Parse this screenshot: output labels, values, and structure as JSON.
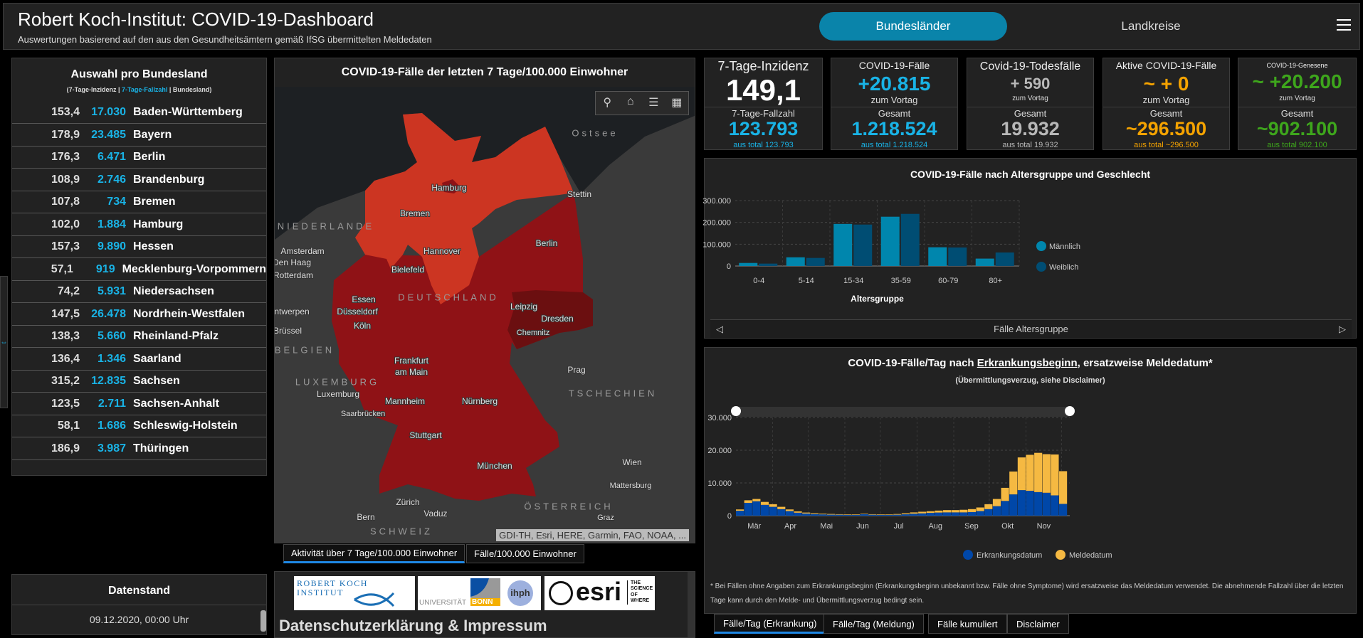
{
  "header": {
    "title": "Robert Koch-Institut: COVID-19-Dashboard",
    "subtitle": "Auswertungen basierend auf den aus den Gesundheitsämtern gemäß IfSG übermittelten Meldedaten",
    "tabs": [
      "Bundesländer",
      "Landkreise"
    ],
    "active_tab": "Bundesländer"
  },
  "states_panel": {
    "title": "Auswahl pro Bundesland",
    "legend_a": "(7-Tage-Inzidenz | ",
    "legend_b": "7-Tage-Fallzahl",
    "legend_c": " | Bundesland)",
    "rows": [
      {
        "inz": "153,4",
        "fz": "17.030",
        "name": "Baden-Württemberg"
      },
      {
        "inz": "178,9",
        "fz": "23.485",
        "name": "Bayern"
      },
      {
        "inz": "176,3",
        "fz": "6.471",
        "name": "Berlin"
      },
      {
        "inz": "108,9",
        "fz": "2.746",
        "name": "Brandenburg"
      },
      {
        "inz": "107,8",
        "fz": "734",
        "name": "Bremen"
      },
      {
        "inz": "102,0",
        "fz": "1.884",
        "name": "Hamburg"
      },
      {
        "inz": "157,3",
        "fz": "9.890",
        "name": "Hessen"
      },
      {
        "inz": "57,1",
        "fz": "919",
        "name": "Mecklenburg-Vorpommern"
      },
      {
        "inz": "74,2",
        "fz": "5.931",
        "name": "Niedersachsen"
      },
      {
        "inz": "147,5",
        "fz": "26.478",
        "name": "Nordrhein-Westfalen"
      },
      {
        "inz": "138,3",
        "fz": "5.660",
        "name": "Rheinland-Pfalz"
      },
      {
        "inz": "136,4",
        "fz": "1.346",
        "name": "Saarland"
      },
      {
        "inz": "315,2",
        "fz": "12.835",
        "name": "Sachsen"
      },
      {
        "inz": "123,5",
        "fz": "2.711",
        "name": "Sachsen-Anhalt"
      },
      {
        "inz": "58,1",
        "fz": "1.686",
        "name": "Schleswig-Holstein"
      },
      {
        "inz": "186,9",
        "fz": "3.987",
        "name": "Thüringen"
      }
    ]
  },
  "datenstand": {
    "title": "Datenstand",
    "value": "09.12.2020, 00:00 Uhr"
  },
  "map": {
    "title": "COVID-19-Fälle der letzten 7 Tage/100.000 Einwohner",
    "attribution": "GDI-TH, Esri, HERE, Garmin, FAO, NOAA, ...",
    "labels": [
      "Ostsee",
      "Hamburg",
      "Stettin",
      "Bremen",
      "NIEDERLANDE",
      "Berlin",
      "Amsterdam",
      "Hannover",
      "Den Haag",
      "Rotterdam",
      "Bielefeld",
      "DEUTSCHLAND",
      "Essen",
      "Leipzig",
      "Antwerpen",
      "Düsseldorf",
      "Dresden",
      "Köln",
      "Brüssel",
      "Chemnitz",
      "BELGIEN",
      "Frankfurt",
      "am Main",
      "Prag",
      "LUXEMBURG",
      "Luxemburg",
      "TSCHECHIEN",
      "Mannheim",
      "Nürnberg",
      "Saarbrücken",
      "Stuttgart",
      "Wien",
      "München",
      "Mattersburg",
      "Zürich",
      "ÖSTERREICH",
      "Vaduz",
      "Graz",
      "Bern",
      "SCHWEIZ"
    ],
    "tabs": [
      "Aktivität über 7 Tage/100.000 Einwohner",
      "Fälle/100.000 Einwohner"
    ],
    "colors": {
      "light": "#cc3522",
      "mid": "#8f1216",
      "dark": "#6b0f10"
    }
  },
  "logos": {
    "rki": "ROBERT KOCH INSTITUT",
    "uni": "UNIVERSITÄT",
    "bonn": "BONN",
    "ihph": "ihph",
    "esri": "esri",
    "esri_tag": "THE SCIENCE OF WHERE",
    "impressum": "Datenschutzerklärung & Impressum"
  },
  "kpis": [
    {
      "top_label": "7-Tage-Inzidenz",
      "top_value": "149,1",
      "top_sub": "",
      "bottom_label": "7-Tage-Fallzahl",
      "bottom_value": "123.793",
      "bottom_sub": "aus total 123.793",
      "color": "#19b3e6",
      "top_color": "#ffffff"
    },
    {
      "top_label": "COVID-19-Fälle",
      "top_value": "+20.815",
      "top_sub": "zum Vortag",
      "bottom_label": "Gesamt",
      "bottom_value": "1.218.524",
      "bottom_sub": "aus total 1.218.524",
      "color": "#19b3e6",
      "top_color": "#19b3e6"
    },
    {
      "top_label": "Covid-19-Todesfälle",
      "top_value": "+ 590",
      "top_sub": "zum Vortag",
      "bottom_label": "Gesamt",
      "bottom_value": "19.932",
      "bottom_sub": "aus total 19.932",
      "color": "#b8b8b8",
      "top_color": "#b8b8b8"
    },
    {
      "top_label": "Aktive COVID-19-Fälle",
      "top_value": "~ + 0",
      "top_sub": "zum Vortag",
      "bottom_label": "Gesamt",
      "bottom_value": "~296.500",
      "bottom_sub": "aus total ~296.500",
      "color": "#f5a300",
      "top_color": "#f5a300"
    },
    {
      "top_label": "COVID-19-Genesene",
      "top_value": "~ +20.200",
      "top_sub": "zum Vortag",
      "bottom_label": "Gesamt",
      "bottom_value": "~902.100",
      "bottom_sub": "aus total 902.100",
      "color": "#3ea61c",
      "top_color": "#3ea61c"
    }
  ],
  "chart_data": [
    {
      "type": "bar",
      "title": "COVID-19-Fälle nach Altersgruppe und Geschlecht",
      "xlabel": "Altersgruppe",
      "ylabel": "",
      "ylim": [
        0,
        300000
      ],
      "yticks": [
        "0",
        "100.000",
        "200.000",
        "300.000"
      ],
      "categories": [
        "0-4",
        "5-14",
        "15-34",
        "35-59",
        "60-79",
        "80+"
      ],
      "series": [
        {
          "name": "Männlich",
          "color": "#0086ad",
          "values": [
            14000,
            40000,
            193000,
            226000,
            86000,
            34000
          ]
        },
        {
          "name": "Weiblich",
          "color": "#004d73",
          "values": [
            11000,
            37000,
            190000,
            239000,
            85000,
            62000
          ]
        }
      ],
      "legend": "right",
      "footer": "Fälle Altersgruppe"
    },
    {
      "type": "bar",
      "stacked": true,
      "title_a": "COVID-19-Fälle/Tag nach ",
      "title_b": "Erkrankungsbeginn",
      "title_c": ", ersatzweise Meldedatum*",
      "subtitle": "(Übermittlungsverzug, siehe Disclaimer)",
      "ylim": [
        0,
        30000
      ],
      "yticks": [
        "0",
        "10.000",
        "20.000",
        "30.000"
      ],
      "xlabels": [
        "Mär",
        "Apr",
        "Mai",
        "Jun",
        "Jul",
        "Aug",
        "Sep",
        "Okt",
        "Nov"
      ],
      "x_start": "2020-03-01",
      "x_end": "2020-12-08",
      "bin_days": 7,
      "series": [
        {
          "name": "Erkrankungsdatum",
          "color": "#0047a8",
          "values": [
            1500,
            3900,
            4400,
            3300,
            2700,
            2000,
            1400,
            900,
            650,
            500,
            400,
            320,
            300,
            260,
            250,
            450,
            300,
            260,
            250,
            300,
            420,
            600,
            700,
            850,
            950,
            1000,
            1000,
            1000,
            1100,
            1400,
            2000,
            2900,
            4500,
            6500,
            7800,
            7600,
            7200,
            7000,
            6200,
            3600
          ]
        },
        {
          "name": "Meldedatum",
          "color": "#f5b942",
          "values": [
            400,
            800,
            700,
            900,
            800,
            700,
            500,
            400,
            300,
            250,
            200,
            200,
            150,
            150,
            150,
            150,
            150,
            150,
            150,
            200,
            300,
            400,
            500,
            500,
            600,
            700,
            700,
            800,
            900,
            1100,
            1500,
            2200,
            4000,
            7000,
            10000,
            11000,
            12000,
            11800,
            12500,
            10000
          ]
        }
      ],
      "legend": "bottom",
      "footnote": "* Bei Fällen ohne Angaben zum Erkrankungsbeginn (Erkrankungsbeginn unbekannt bzw. Fälle ohne Symptome) wird ersatzweise das Meldedatum verwendet. Die abnehmende Fallzahl über die letzten Tage kann durch den Melde- und Übermittlungsverzug bedingt sein."
    }
  ],
  "ts_tabs": [
    "Fälle/Tag (Erkrankung)",
    "Fälle/Tag (Meldung)",
    "Fälle kumuliert",
    "Disclaimer"
  ]
}
